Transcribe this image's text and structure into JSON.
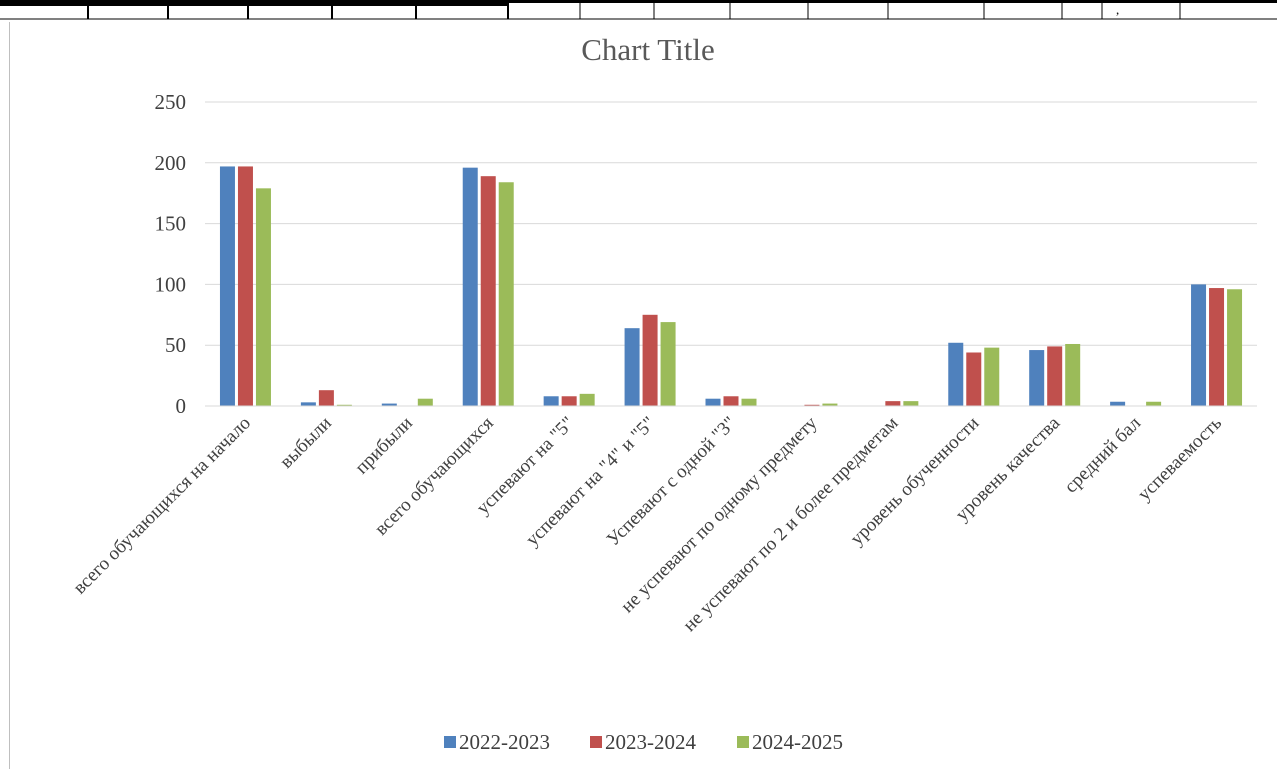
{
  "chart_data": {
    "type": "bar",
    "title": "Chart Title",
    "xlabel": "",
    "ylabel": "",
    "ylim": [
      0,
      250
    ],
    "yticks": [
      0,
      50,
      100,
      150,
      200,
      250
    ],
    "grid": true,
    "legend_position": "bottom",
    "categories": [
      "всего обучающихся на начало",
      "выбыли",
      "прибыли",
      "всего обучающихся",
      "успевают на \"5\"",
      "успевают на \"4\" и \"5\"",
      "Успевают с одной \"3\"",
      "не успевают по одному предмету",
      "не успевают по 2 и более предметам",
      "уровень обученности",
      "уровень качества",
      "средний бал",
      "успеваемость"
    ],
    "series": [
      {
        "name": "2022-2023",
        "color": "#4f81bd",
        "values": [
          197,
          3,
          2,
          196,
          8,
          64,
          6,
          0,
          0,
          52,
          46,
          3.5,
          100
        ]
      },
      {
        "name": "2023-2024",
        "color": "#c0504d",
        "values": [
          197,
          13,
          0,
          189,
          8,
          75,
          8,
          1,
          4,
          44,
          49,
          0,
          97
        ]
      },
      {
        "name": "2024-2025",
        "color": "#9bbb59",
        "values": [
          179,
          1,
          6,
          184,
          10,
          69,
          6,
          2,
          4,
          48,
          51,
          3.5,
          96
        ]
      }
    ]
  }
}
